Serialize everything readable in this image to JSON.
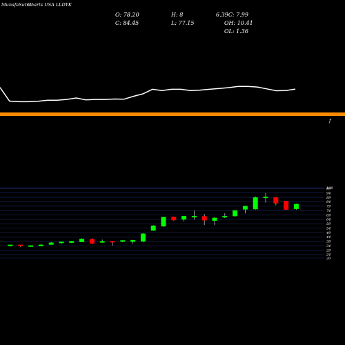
{
  "header": {
    "brand": "MunafaSutra",
    "title": "Charts USA LLDYK",
    "open_label": "O: 78.20",
    "close_label": "C: 84.45",
    "high_label": "H: 8",
    "low_label": "L: 77.15",
    "change_label": "6.39C: 7.99",
    "oh_label": "OH: 10.41",
    "ol_label": "OL: 1.36"
  },
  "divider": {
    "marker": "f"
  },
  "colors": {
    "background": "#000000",
    "line": "#ffffff",
    "divider": "#ff8c00",
    "up": "#00ff00",
    "down": "#ff0000",
    "grid": "#1a2a66"
  },
  "chart_data": [
    {
      "type": "line",
      "x": [
        1,
        2,
        3,
        4,
        5,
        6,
        7,
        8,
        9,
        10,
        11,
        12,
        13,
        14,
        15,
        16,
        17,
        18,
        19,
        20,
        21,
        22,
        23,
        24,
        25,
        26,
        27,
        28,
        29,
        30,
        31,
        32
      ],
      "y": [
        21.1,
        14.5,
        14.2,
        14.2,
        14.4,
        14.9,
        14.9,
        15.3,
        16.0,
        15.1,
        15.3,
        15.3,
        15.5,
        15.4,
        16.8,
        18.0,
        20.2,
        19.6,
        20.2,
        20.2,
        19.6,
        19.8,
        20.2,
        20.6,
        21.0,
        21.6,
        21.6,
        21.3,
        20.4,
        19.5,
        19.6,
        20.3
      ],
      "ylim": [
        10,
        30
      ],
      "grid": false
    },
    {
      "type": "candlestick",
      "yticks": [
        20,
        24,
        29,
        34,
        39,
        44,
        49,
        54,
        59,
        64,
        69,
        74,
        79,
        84,
        89,
        94,
        99,
        100
      ],
      "ylim": [
        20,
        100
      ],
      "grid": true,
      "candles": [
        {
          "o": 34.0,
          "h": 35.0,
          "l": 33.5,
          "c": 34.4,
          "color": "up"
        },
        {
          "o": 34.4,
          "h": 34.5,
          "l": 32.5,
          "c": 33.5,
          "color": "down"
        },
        {
          "o": 33.5,
          "h": 34.6,
          "l": 33.4,
          "c": 33.6,
          "color": "up"
        },
        {
          "o": 33.6,
          "h": 36.0,
          "l": 33.5,
          "c": 35.2,
          "color": "up"
        },
        {
          "o": 35.2,
          "h": 38.1,
          "l": 35.0,
          "c": 37.6,
          "color": "up"
        },
        {
          "o": 36.5,
          "h": 38.3,
          "l": 36.3,
          "c": 37.8,
          "color": "up"
        },
        {
          "o": 37.4,
          "h": 39.5,
          "l": 37.0,
          "c": 39.3,
          "color": "up"
        },
        {
          "o": 38.2,
          "h": 42.5,
          "l": 38.0,
          "c": 42.0,
          "color": "up"
        },
        {
          "o": 41.8,
          "h": 42.5,
          "l": 35.6,
          "c": 36.5,
          "color": "down"
        },
        {
          "o": 37.6,
          "h": 41.0,
          "l": 37.2,
          "c": 38.4,
          "color": "up"
        },
        {
          "o": 38.6,
          "h": 39.0,
          "l": 34.0,
          "c": 38.5,
          "color": "down"
        },
        {
          "o": 38.4,
          "h": 39.5,
          "l": 38.0,
          "c": 39.4,
          "color": "up"
        },
        {
          "o": 38.5,
          "h": 40.8,
          "l": 36.5,
          "c": 40.5,
          "color": "up"
        },
        {
          "o": 38.8,
          "h": 48.2,
          "l": 38.0,
          "c": 47.8,
          "color": "up"
        },
        {
          "o": 51.2,
          "h": 57.5,
          "l": 51.0,
          "c": 56.8,
          "color": "up"
        },
        {
          "o": 56.0,
          "h": 67.0,
          "l": 55.5,
          "c": 66.8,
          "color": "up"
        },
        {
          "o": 67.0,
          "h": 67.2,
          "l": 62.5,
          "c": 63.0,
          "color": "down"
        },
        {
          "o": 63.8,
          "h": 68.0,
          "l": 61.8,
          "c": 67.8,
          "color": "up"
        },
        {
          "o": 66.2,
          "h": 74.0,
          "l": 63.5,
          "c": 67.0,
          "color": "up"
        },
        {
          "o": 67.6,
          "h": 70.0,
          "l": 57.5,
          "c": 62.8,
          "color": "down"
        },
        {
          "o": 62.4,
          "h": 66.5,
          "l": 57.5,
          "c": 65.8,
          "color": "up"
        },
        {
          "o": 66.0,
          "h": 71.0,
          "l": 65.5,
          "c": 67.0,
          "color": "up"
        },
        {
          "o": 67.6,
          "h": 74.5,
          "l": 67.0,
          "c": 74.2,
          "color": "up"
        },
        {
          "o": 75.2,
          "h": 79.5,
          "l": 70.8,
          "c": 79.2,
          "color": "up"
        },
        {
          "o": 75.5,
          "h": 90.0,
          "l": 75.0,
          "c": 89.0,
          "color": "up"
        },
        {
          "o": 88.4,
          "h": 94.0,
          "l": 83.0,
          "c": 89.0,
          "color": "up"
        },
        {
          "o": 89.0,
          "h": 89.5,
          "l": 80.0,
          "c": 82.2,
          "color": "down"
        },
        {
          "o": 85.0,
          "h": 85.2,
          "l": 74.5,
          "c": 75.0,
          "color": "down"
        },
        {
          "o": 75.8,
          "h": 82.0,
          "l": 75.0,
          "c": 81.5,
          "color": "up"
        }
      ]
    }
  ]
}
